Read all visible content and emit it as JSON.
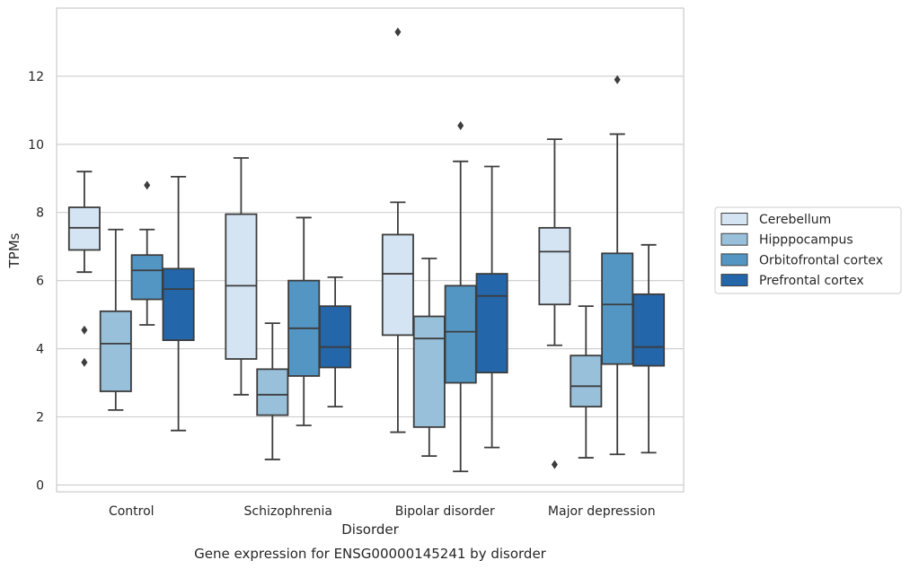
{
  "chart_data": {
    "type": "box",
    "xlabel": "Disorder",
    "ylabel": "TPMs",
    "caption": "Gene expression for ENSG00000145241 by disorder",
    "ylim": [
      -0.2,
      14.0
    ],
    "yticks": [
      0,
      2,
      4,
      6,
      8,
      10,
      12
    ],
    "grid": "horizontal",
    "legend_position": "right",
    "categories": [
      "Control",
      "Schizophrenia",
      "Bipolar disorder",
      "Major depression"
    ],
    "series": [
      {
        "name": "Cerebellum",
        "color": "#d5e4f3",
        "boxes": [
          {
            "whisker_low": 6.25,
            "q1": 6.9,
            "median": 7.55,
            "q3": 8.15,
            "whisker_high": 9.2,
            "outliers": [
              4.55,
              3.6
            ]
          },
          {
            "whisker_low": 2.65,
            "q1": 3.7,
            "median": 5.85,
            "q3": 7.95,
            "whisker_high": 9.6,
            "outliers": []
          },
          {
            "whisker_low": 1.55,
            "q1": 4.4,
            "median": 6.2,
            "q3": 7.35,
            "whisker_high": 8.3,
            "outliers": [
              13.3
            ]
          },
          {
            "whisker_low": 4.1,
            "q1": 5.3,
            "median": 6.85,
            "q3": 7.55,
            "whisker_high": 10.15,
            "outliers": [
              0.6
            ]
          }
        ]
      },
      {
        "name": "Hipppocampus",
        "color": "#98c0db",
        "boxes": [
          {
            "whisker_low": 2.2,
            "q1": 2.75,
            "median": 4.15,
            "q3": 5.1,
            "whisker_high": 7.5,
            "outliers": []
          },
          {
            "whisker_low": 0.75,
            "q1": 2.05,
            "median": 2.65,
            "q3": 3.4,
            "whisker_high": 4.75,
            "outliers": []
          },
          {
            "whisker_low": 0.85,
            "q1": 1.7,
            "median": 4.3,
            "q3": 4.95,
            "whisker_high": 6.65,
            "outliers": []
          },
          {
            "whisker_low": 0.8,
            "q1": 2.3,
            "median": 2.9,
            "q3": 3.8,
            "whisker_high": 5.25,
            "outliers": []
          }
        ]
      },
      {
        "name": "Orbitofrontal cortex",
        "color": "#5396c4",
        "boxes": [
          {
            "whisker_low": 4.7,
            "q1": 5.45,
            "median": 6.3,
            "q3": 6.75,
            "whisker_high": 7.5,
            "outliers": [
              8.8
            ]
          },
          {
            "whisker_low": 1.75,
            "q1": 3.2,
            "median": 4.6,
            "q3": 6.0,
            "whisker_high": 7.85,
            "outliers": []
          },
          {
            "whisker_low": 0.4,
            "q1": 3.0,
            "median": 4.5,
            "q3": 5.85,
            "whisker_high": 9.5,
            "outliers": [
              10.55
            ]
          },
          {
            "whisker_low": 0.9,
            "q1": 3.55,
            "median": 5.3,
            "q3": 6.8,
            "whisker_high": 10.3,
            "outliers": [
              11.9
            ]
          }
        ]
      },
      {
        "name": "Prefrontal cortex",
        "color": "#2366aa",
        "boxes": [
          {
            "whisker_low": 1.6,
            "q1": 4.25,
            "median": 5.75,
            "q3": 6.35,
            "whisker_high": 9.05,
            "outliers": []
          },
          {
            "whisker_low": 2.3,
            "q1": 3.45,
            "median": 4.05,
            "q3": 5.25,
            "whisker_high": 6.1,
            "outliers": []
          },
          {
            "whisker_low": 1.1,
            "q1": 3.3,
            "median": 5.55,
            "q3": 6.2,
            "whisker_high": 9.35,
            "outliers": []
          },
          {
            "whisker_low": 0.95,
            "q1": 3.5,
            "median": 4.05,
            "q3": 5.6,
            "whisker_high": 7.05,
            "outliers": []
          }
        ]
      }
    ]
  }
}
